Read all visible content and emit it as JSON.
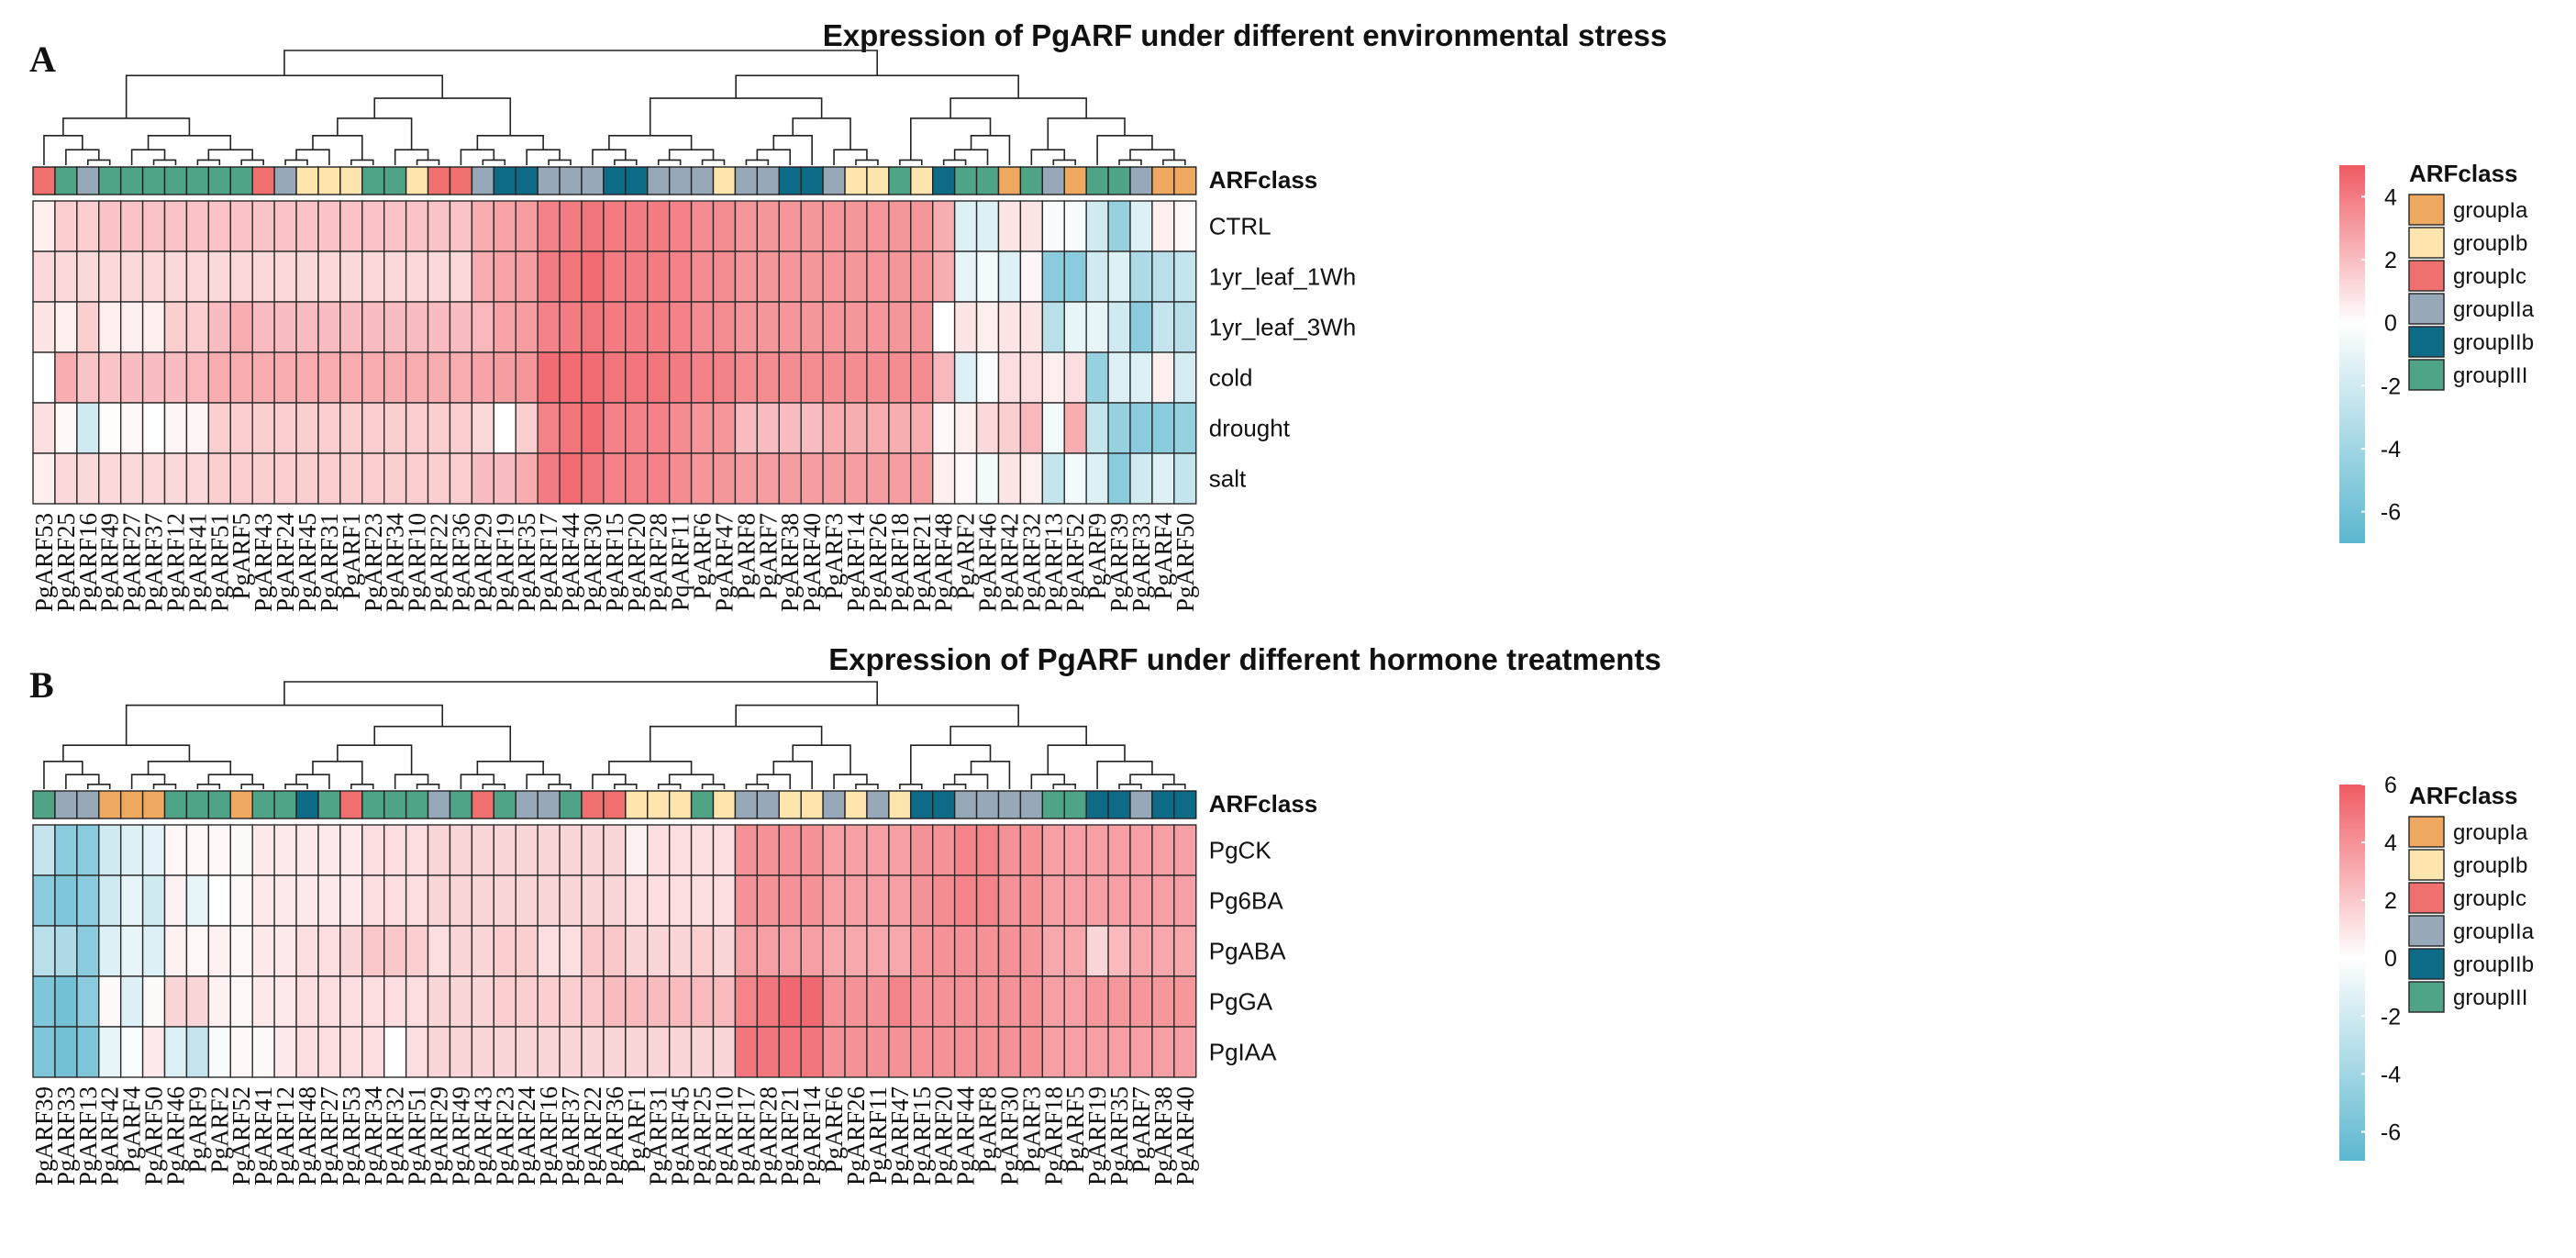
{
  "colors": {
    "scale_low": "#5bb7cf",
    "scale_mid": "#ffffff",
    "scale_high": "#f05b63",
    "groupIa": "#efa860",
    "groupIb": "#fde5ad",
    "groupIc": "#f07070",
    "groupIIa": "#97a8b9",
    "groupIIb": "#0e6b88",
    "groupIII": "#4fa387",
    "dendrogram": "#222222"
  },
  "chart_data": [
    {
      "type": "heatmap",
      "panel_label": "A",
      "title": "Expression of PgARF under different environmental stress",
      "annotation_label": "ARFclass",
      "legend_title": "ARFclass",
      "legend_groups": [
        "groupIa",
        "groupIb",
        "groupIc",
        "groupIIa",
        "groupIIb",
        "groupIII"
      ],
      "scale_ticks": [
        "4",
        "2",
        "0",
        "-2",
        "-4",
        "-6"
      ],
      "scale_tick_values": [
        4,
        2,
        0,
        -2,
        -4,
        -6
      ],
      "scale_range": [
        -7,
        5
      ],
      "rows": [
        "CTRL",
        "1yr_leaf_1Wh",
        "1yr_leaf_3Wh",
        "cold",
        "drought",
        "salt"
      ],
      "columns": [
        "PgARF53",
        "PgARF25",
        "PgARF16",
        "PgARF49",
        "PgARF27",
        "PgARF37",
        "PgARF12",
        "PgARF41",
        "PgARF51",
        "PgARF5",
        "PgARF43",
        "PgARF24",
        "PgARF45",
        "PgARF31",
        "PgARF1",
        "PgARF23",
        "PgARF34",
        "PgARF10",
        "PgARF22",
        "PgARF36",
        "PgARF29",
        "PgARF19",
        "PgARF35",
        "PgARF17",
        "PgARF44",
        "PgARF30",
        "PgARF15",
        "PgARF20",
        "PgARF28",
        "PqARF11",
        "PgARF6",
        "PgARF47",
        "PgARF8",
        "PgARF7",
        "PgARF38",
        "PgARF40",
        "PgARF3",
        "PgARF14",
        "PgARF26",
        "PgARF18",
        "PgARF21",
        "PgARF48",
        "PgARF2",
        "PgARF46",
        "PgARF42",
        "PgARF32",
        "PgARF13",
        "PgARF52",
        "PgARF9",
        "PgARF39",
        "PgARF33",
        "PgARF4",
        "PgARF50"
      ],
      "column_classes": [
        "groupIc",
        "groupIII",
        "groupIIa",
        "groupIII",
        "groupIII",
        "groupIII",
        "groupIII",
        "groupIII",
        "groupIII",
        "groupIII",
        "groupIc",
        "groupIIa",
        "groupIb",
        "groupIb",
        "groupIb",
        "groupIII",
        "groupIII",
        "groupIb",
        "groupIc",
        "groupIc",
        "groupIIa",
        "groupIIb",
        "groupIIb",
        "groupIIa",
        "groupIIa",
        "groupIIa",
        "groupIIb",
        "groupIIb",
        "groupIIa",
        "groupIIa",
        "groupIIa",
        "groupIb",
        "groupIIa",
        "groupIIa",
        "groupIIb",
        "groupIIb",
        "groupIIa",
        "groupIb",
        "groupIb",
        "groupIII",
        "groupIb",
        "groupIIb",
        "groupIII",
        "groupIII",
        "groupIa",
        "groupIII",
        "groupIIa",
        "groupIa",
        "groupIII",
        "groupIII",
        "groupIIa",
        "groupIa",
        "groupIa"
      ],
      "values": [
        [
          0.5,
          1.5,
          1.5,
          1.8,
          1.8,
          1.8,
          1.8,
          1.8,
          1.8,
          1.8,
          1.8,
          1.8,
          1.8,
          1.8,
          1.8,
          1.8,
          1.8,
          1.8,
          1.8,
          1.8,
          2.5,
          2.8,
          3.0,
          3.8,
          4.0,
          4.2,
          4.0,
          4.0,
          4.0,
          3.8,
          3.5,
          3.5,
          3.2,
          3.2,
          3.2,
          3.2,
          3.2,
          3.2,
          3.2,
          3.2,
          3.2,
          2.5,
          -1.5,
          -1.5,
          0.8,
          0.8,
          -0.3,
          -0.3,
          -2.0,
          -4.5,
          -1.5,
          0.5,
          0.2
        ],
        [
          1.2,
          1.2,
          1.2,
          1.2,
          1.2,
          1.2,
          1.2,
          1.2,
          1.2,
          1.2,
          1.2,
          1.2,
          1.2,
          1.2,
          1.2,
          1.2,
          1.2,
          1.2,
          1.2,
          1.2,
          2.5,
          2.8,
          3.0,
          4.0,
          4.2,
          4.5,
          4.0,
          4.0,
          4.0,
          3.8,
          3.5,
          3.5,
          3.2,
          3.2,
          3.2,
          3.2,
          3.2,
          3.2,
          3.2,
          3.2,
          3.2,
          2.5,
          -1.0,
          -0.5,
          -1.5,
          0.3,
          -5.0,
          -5.0,
          -2.0,
          -1.5,
          -3.5,
          -3.0,
          -2.5
        ],
        [
          0.8,
          0.5,
          1.5,
          0.5,
          0.5,
          0.5,
          1.5,
          1.5,
          2.0,
          2.5,
          2.0,
          2.0,
          2.0,
          2.0,
          2.0,
          2.0,
          2.0,
          2.0,
          2.0,
          2.0,
          2.2,
          2.8,
          3.0,
          3.8,
          4.0,
          4.2,
          4.0,
          4.0,
          4.0,
          3.8,
          3.5,
          3.5,
          3.2,
          3.2,
          3.2,
          3.2,
          3.2,
          3.2,
          3.2,
          3.2,
          3.2,
          0.0,
          0.8,
          0.5,
          0.8,
          0.8,
          -3.0,
          -1.0,
          -1.0,
          -2.0,
          -5.0,
          -2.5,
          -3.0
        ],
        [
          0.0,
          2.5,
          1.8,
          1.8,
          2.0,
          2.0,
          2.0,
          2.2,
          2.5,
          2.5,
          2.5,
          2.5,
          2.5,
          2.5,
          2.5,
          2.5,
          2.5,
          2.5,
          2.5,
          2.5,
          2.8,
          3.0,
          3.2,
          4.5,
          4.5,
          4.5,
          4.2,
          4.2,
          4.2,
          4.0,
          3.8,
          3.8,
          3.5,
          3.5,
          3.5,
          3.5,
          3.5,
          3.5,
          3.5,
          3.5,
          3.5,
          2.2,
          -1.5,
          -0.2,
          1.0,
          1.0,
          0.5,
          1.0,
          -4.5,
          -1.5,
          -1.5,
          0.5,
          -1.8
        ],
        [
          1.0,
          0.2,
          -2.0,
          0.1,
          0.2,
          -0.1,
          0.3,
          0.3,
          1.5,
          1.5,
          1.5,
          1.5,
          1.5,
          1.5,
          1.5,
          1.5,
          1.5,
          1.5,
          1.5,
          1.5,
          1.2,
          0.0,
          1.5,
          3.8,
          4.2,
          4.5,
          3.8,
          3.8,
          3.8,
          3.5,
          3.2,
          3.2,
          2.0,
          2.0,
          2.0,
          2.0,
          2.5,
          2.5,
          2.5,
          2.5,
          2.5,
          0.2,
          0.5,
          1.2,
          1.5,
          2.2,
          -0.5,
          2.5,
          -2.5,
          -4.5,
          -5.0,
          -5.0,
          -4.5
        ],
        [
          0.5,
          1.2,
          1.2,
          1.2,
          1.2,
          1.2,
          1.2,
          1.2,
          1.5,
          1.5,
          1.5,
          1.5,
          1.5,
          1.5,
          1.5,
          1.5,
          1.5,
          1.5,
          1.5,
          1.5,
          2.0,
          2.0,
          2.5,
          4.0,
          4.5,
          4.2,
          3.8,
          3.8,
          3.8,
          3.5,
          3.2,
          3.2,
          3.0,
          3.0,
          3.0,
          3.0,
          3.0,
          3.0,
          3.0,
          3.0,
          3.0,
          0.5,
          0.2,
          -0.5,
          0.8,
          0.5,
          -2.5,
          -0.5,
          -1.5,
          -5.0,
          -2.0,
          -1.5,
          -2.5
        ]
      ]
    },
    {
      "type": "heatmap",
      "panel_label": "B",
      "title": "Expression of PgARF under different hormone treatments",
      "annotation_label": "ARFclass",
      "legend_title": "ARFclass",
      "legend_groups": [
        "groupIa",
        "groupIb",
        "groupIc",
        "groupIIa",
        "groupIIb",
        "groupIII"
      ],
      "scale_ticks": [
        "6",
        "4",
        "2",
        "0",
        "-2",
        "-4",
        "-6"
      ],
      "scale_tick_values": [
        6,
        4,
        2,
        0,
        -2,
        -4,
        -6
      ],
      "scale_range": [
        -7,
        6
      ],
      "rows": [
        "PgCK",
        "Pg6BA",
        "PgABA",
        "PgGA",
        "PgIAA"
      ],
      "columns": [
        "PgARF39",
        "PgARF33",
        "PgARF13",
        "PgARF42",
        "PgARF4",
        "PgARF50",
        "PgARF46",
        "PgARF9",
        "PgARF2",
        "PgARF52",
        "PgARF41",
        "PgARF12",
        "PgARF48",
        "PgARF27",
        "PgARF53",
        "PgARF34",
        "PgARF32",
        "PgARF51",
        "PgARF29",
        "PgARF49",
        "PgARF43",
        "PgARF23",
        "PgARF24",
        "PgARF16",
        "PgARF37",
        "PgARF22",
        "PgARF36",
        "PgARF1",
        "PgARF31",
        "PgARF45",
        "PgARF25",
        "PgARF10",
        "PgARF17",
        "PgARF28",
        "PgARF21",
        "PgARF14",
        "PgARF6",
        "PgARF26",
        "PgARF11",
        "PgARF47",
        "PgARF15",
        "PgARF20",
        "PgARF44",
        "PgARF8",
        "PgARF30",
        "PgARF3",
        "PgARF18",
        "PgARF5",
        "PgARF19",
        "PgARF35",
        "PgARF7",
        "PgARF38",
        "PgARF40"
      ],
      "column_classes": [
        "groupIII",
        "groupIIa",
        "groupIIa",
        "groupIa",
        "groupIa",
        "groupIa",
        "groupIII",
        "groupIII",
        "groupIII",
        "groupIa",
        "groupIII",
        "groupIII",
        "groupIIb",
        "groupIII",
        "groupIc",
        "groupIII",
        "groupIII",
        "groupIII",
        "groupIIa",
        "groupIII",
        "groupIc",
        "groupIII",
        "groupIIa",
        "groupIIa",
        "groupIII",
        "groupIc",
        "groupIc",
        "groupIb",
        "groupIb",
        "groupIb",
        "groupIII",
        "groupIb",
        "groupIIa",
        "groupIIa",
        "groupIb",
        "groupIb",
        "groupIIa",
        "groupIb",
        "groupIIa",
        "groupIb",
        "groupIIb",
        "groupIIb",
        "groupIIa",
        "groupIIa",
        "groupIIa",
        "groupIIa",
        "groupIII",
        "groupIII",
        "groupIIb",
        "groupIIb",
        "groupIIa",
        "groupIIb",
        "groupIIb"
      ],
      "values": [
        [
          -2.5,
          -5.0,
          -5.0,
          -2.0,
          -1.5,
          -1.2,
          0.3,
          0.3,
          0.3,
          0.2,
          0.8,
          0.8,
          0.8,
          0.8,
          0.8,
          1.2,
          1.2,
          1.2,
          1.5,
          1.5,
          1.5,
          1.5,
          1.5,
          1.5,
          1.5,
          1.5,
          1.5,
          0.5,
          1.2,
          1.2,
          1.2,
          1.2,
          4.0,
          4.0,
          4.0,
          4.0,
          3.5,
          3.5,
          3.5,
          3.5,
          4.0,
          4.0,
          4.5,
          4.5,
          4.0,
          4.0,
          3.5,
          3.5,
          3.5,
          3.5,
          3.5,
          3.5,
          3.5
        ],
        [
          -5.0,
          -5.5,
          -5.0,
          -2.0,
          -1.0,
          -2.0,
          0.5,
          -1.0,
          0.0,
          0.3,
          0.8,
          0.8,
          0.8,
          0.8,
          0.8,
          1.2,
          1.2,
          1.2,
          1.5,
          1.5,
          1.5,
          1.5,
          1.5,
          1.5,
          1.5,
          1.5,
          1.5,
          1.2,
          1.2,
          1.2,
          1.2,
          1.2,
          4.0,
          4.0,
          4.0,
          4.0,
          3.5,
          3.5,
          3.5,
          3.5,
          4.0,
          4.2,
          4.5,
          4.5,
          4.0,
          4.0,
          3.5,
          3.5,
          3.5,
          3.5,
          3.5,
          3.5,
          3.5
        ],
        [
          -3.0,
          -3.5,
          -5.0,
          -1.5,
          -1.0,
          -1.5,
          0.5,
          0.3,
          0.5,
          0.3,
          0.8,
          0.8,
          1.2,
          1.2,
          1.5,
          2.0,
          2.0,
          1.8,
          1.2,
          1.5,
          1.5,
          1.8,
          1.8,
          1.2,
          1.2,
          2.0,
          2.0,
          1.5,
          1.5,
          1.5,
          1.8,
          1.5,
          3.5,
          3.5,
          3.5,
          3.5,
          3.2,
          3.2,
          3.2,
          3.2,
          3.8,
          4.0,
          4.0,
          4.0,
          4.0,
          3.8,
          3.2,
          3.2,
          1.5,
          2.5,
          3.2,
          3.2,
          3.2
        ],
        [
          -5.5,
          -6.0,
          -5.0,
          0.2,
          -1.5,
          0.2,
          1.5,
          1.5,
          0.5,
          0.3,
          0.8,
          0.8,
          1.2,
          1.2,
          1.2,
          1.2,
          1.2,
          1.2,
          1.5,
          1.5,
          1.5,
          1.8,
          1.8,
          1.8,
          1.8,
          2.0,
          2.5,
          2.5,
          2.5,
          2.5,
          2.5,
          2.5,
          4.5,
          5.0,
          5.5,
          5.5,
          4.0,
          4.0,
          4.0,
          4.5,
          4.0,
          4.0,
          4.0,
          4.0,
          4.0,
          4.0,
          3.5,
          3.5,
          3.8,
          3.8,
          3.8,
          3.8,
          3.8
        ],
        [
          -5.5,
          -6.0,
          -5.5,
          -1.0,
          -0.2,
          0.8,
          -1.5,
          -2.5,
          -0.3,
          0.3,
          0.2,
          0.8,
          1.2,
          1.2,
          1.2,
          1.2,
          0.0,
          1.2,
          1.5,
          1.5,
          1.5,
          1.5,
          1.5,
          1.5,
          1.5,
          1.5,
          1.5,
          1.5,
          1.5,
          1.5,
          1.5,
          1.5,
          5.0,
          5.0,
          5.0,
          5.0,
          4.0,
          4.0,
          4.0,
          4.0,
          4.0,
          4.0,
          4.0,
          4.0,
          4.0,
          4.0,
          3.5,
          3.5,
          3.5,
          3.5,
          3.5,
          3.5,
          3.5
        ]
      ]
    }
  ]
}
